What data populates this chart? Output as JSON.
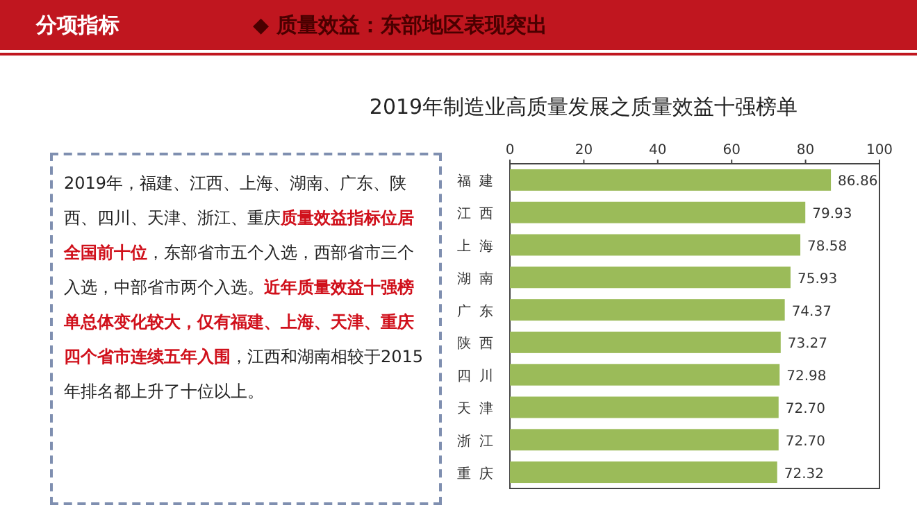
{
  "chart_data": {
    "type": "bar",
    "orientation": "horizontal",
    "title": "2019年制造业高质量发展之质量效益十强榜单",
    "categories": [
      "福建",
      "江西",
      "上海",
      "湖南",
      "广东",
      "陕西",
      "四川",
      "天津",
      "浙江",
      "重庆"
    ],
    "values": [
      86.86,
      79.93,
      78.58,
      75.93,
      74.37,
      73.27,
      72.98,
      72.7,
      72.7,
      72.32
    ],
    "value_labels": [
      "86.86",
      "79.93",
      "78.58",
      "75.93",
      "74.37",
      "73.27",
      "72.98",
      "72.70",
      "72.70",
      "72.32"
    ],
    "color": "#9bbb59",
    "xlim": [
      0,
      100
    ],
    "xticks": [
      0,
      20,
      40,
      60,
      80,
      100
    ],
    "grid": false,
    "annotations": [
      "分项指标",
      "◆ 质量效益：东部地区表现突出",
      "2019年，福建、江西、上海、湖南、广东、陕西、四川、天津、浙江、重庆",
      "质量效益指标位居全国前十位",
      "，东部省市五个入选，西部省市三个入选，中部省市两个入选。",
      "近年质量效益十强榜单总体变化较大，仅有福建、上海、天津、重庆四个省市连续五年入围",
      "，江西和湖南相较于2015年排名都上升了十位以上。"
    ]
  }
}
